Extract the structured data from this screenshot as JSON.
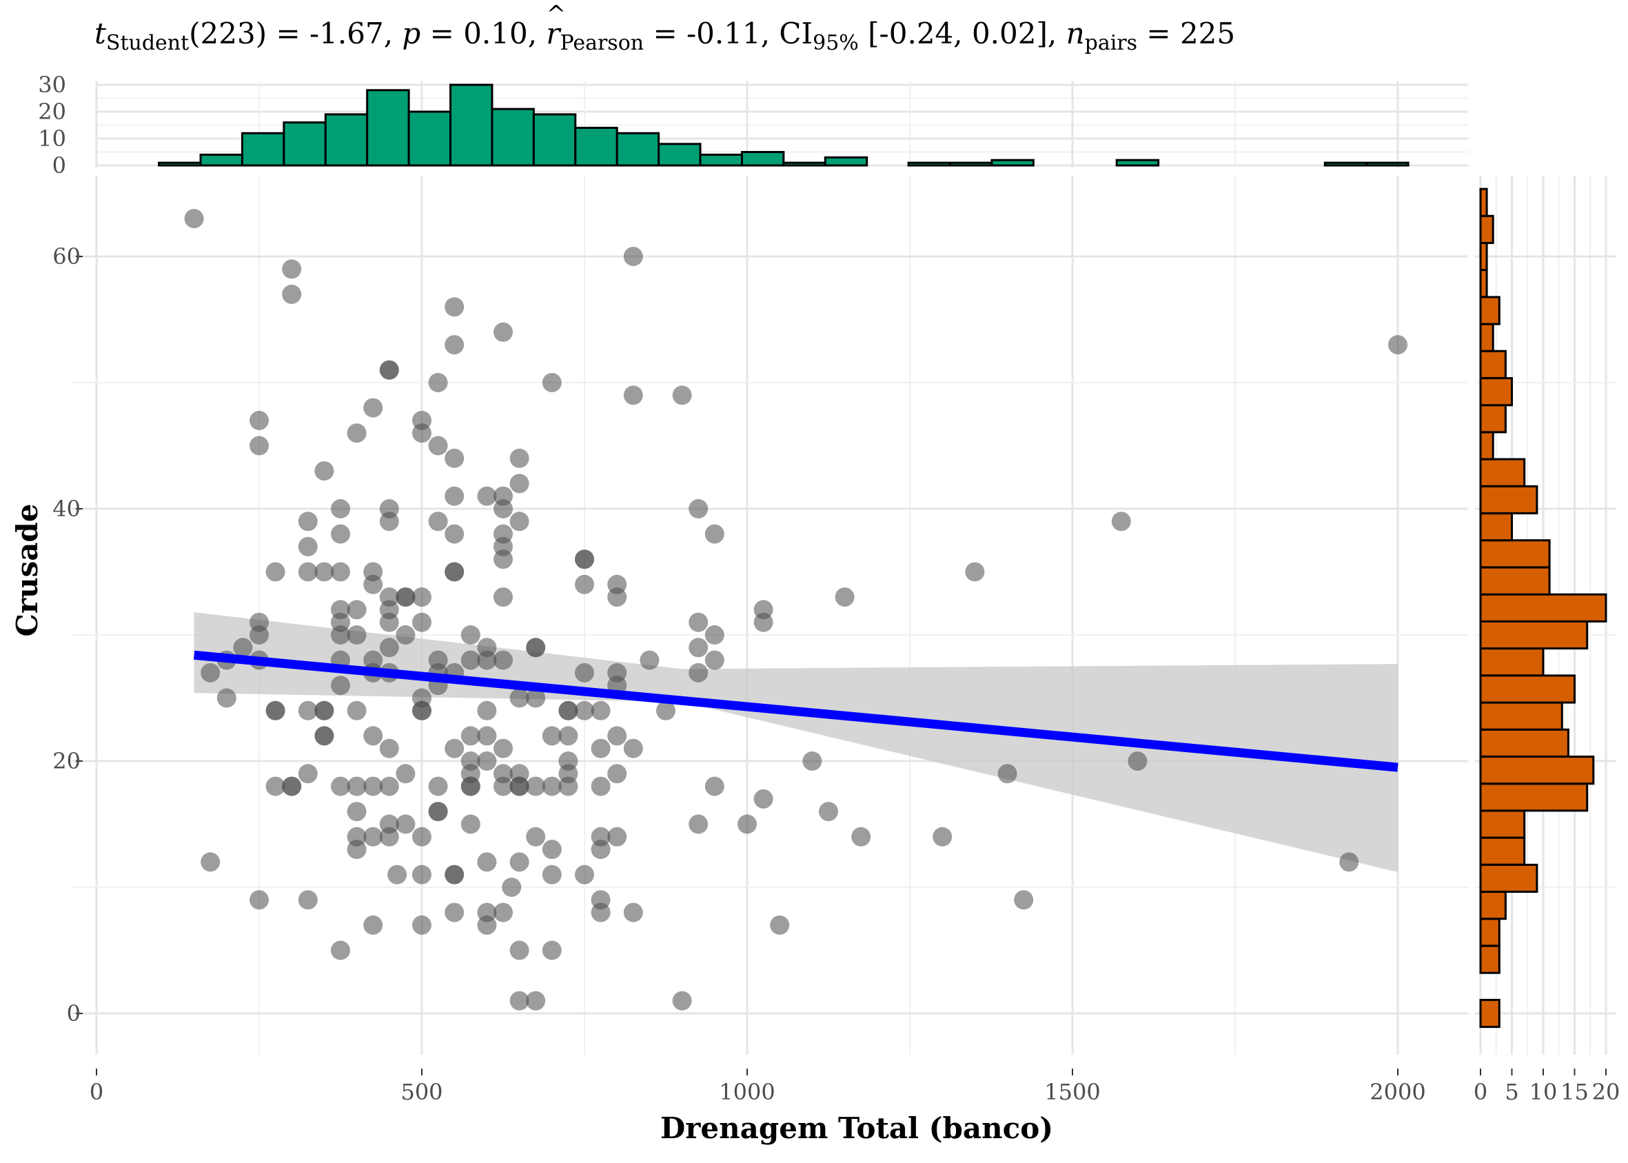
{
  "chart_data": {
    "type": "scatter",
    "title": {
      "t_label": "t",
      "t_sub": "Student",
      "t_value": "(223) = -1.67, ",
      "p_label": "p",
      "p_value": " = 0.10, ",
      "r_label": "r",
      "r_sub": "Pearson",
      "r_value": " = -0.11, CI",
      "ci_sub": "95%",
      "ci_value": " [-0.24, 0.02], ",
      "n_label": "n",
      "n_sub": "pairs",
      "n_value": " = 225"
    },
    "xlabel": "Drenagem Total (banco)",
    "ylabel": "Crusade",
    "xlim": [
      0,
      2100
    ],
    "ylim": [
      -3.5,
      68
    ],
    "x_ticks": [
      0,
      500,
      1000,
      1500,
      2000
    ],
    "x_tick_labels": [
      "0",
      "500",
      "1000",
      "1500",
      "2000"
    ],
    "y_ticks": [
      0,
      20,
      40,
      60
    ],
    "y_tick_labels": [
      "0",
      "20",
      "40",
      "60"
    ],
    "grid": true,
    "colors": {
      "points": "#4d4d4d",
      "fit_line": "#0000ff",
      "ci_band": "#c8c8c8",
      "top_hist": "#009e73",
      "side_hist": "#d55e00"
    },
    "points": [
      [
        150,
        63
      ],
      [
        175,
        12
      ],
      [
        175,
        27
      ],
      [
        200,
        28
      ],
      [
        200,
        25
      ],
      [
        225,
        29
      ],
      [
        250,
        47
      ],
      [
        250,
        45
      ],
      [
        250,
        31
      ],
      [
        250,
        30
      ],
      [
        250,
        28
      ],
      [
        250,
        9
      ],
      [
        275,
        35
      ],
      [
        275,
        24
      ],
      [
        275,
        24
      ],
      [
        275,
        18
      ],
      [
        300,
        59
      ],
      [
        300,
        57
      ],
      [
        300,
        18
      ],
      [
        300,
        18
      ],
      [
        325,
        39
      ],
      [
        325,
        37
      ],
      [
        325,
        35
      ],
      [
        325,
        24
      ],
      [
        325,
        19
      ],
      [
        325,
        9
      ],
      [
        350,
        43
      ],
      [
        350,
        35
      ],
      [
        350,
        24
      ],
      [
        350,
        24
      ],
      [
        350,
        22
      ],
      [
        350,
        22
      ],
      [
        375,
        40
      ],
      [
        375,
        38
      ],
      [
        375,
        35
      ],
      [
        375,
        32
      ],
      [
        375,
        31
      ],
      [
        375,
        30
      ],
      [
        375,
        28
      ],
      [
        375,
        26
      ],
      [
        375,
        18
      ],
      [
        375,
        5
      ],
      [
        400,
        46
      ],
      [
        400,
        32
      ],
      [
        400,
        30
      ],
      [
        400,
        24
      ],
      [
        400,
        18
      ],
      [
        400,
        16
      ],
      [
        400,
        14
      ],
      [
        400,
        13
      ],
      [
        425,
        48
      ],
      [
        425,
        35
      ],
      [
        425,
        34
      ],
      [
        425,
        28
      ],
      [
        425,
        27
      ],
      [
        425,
        22
      ],
      [
        425,
        18
      ],
      [
        425,
        14
      ],
      [
        425,
        7
      ],
      [
        450,
        51
      ],
      [
        450,
        51
      ],
      [
        450,
        40
      ],
      [
        450,
        39
      ],
      [
        450,
        33
      ],
      [
        450,
        32
      ],
      [
        450,
        31
      ],
      [
        450,
        29
      ],
      [
        450,
        27
      ],
      [
        450,
        21
      ],
      [
        450,
        18
      ],
      [
        450,
        15
      ],
      [
        450,
        14
      ],
      [
        462,
        11
      ],
      [
        475,
        33
      ],
      [
        475,
        33
      ],
      [
        475,
        30
      ],
      [
        475,
        19
      ],
      [
        475,
        15
      ],
      [
        500,
        47
      ],
      [
        500,
        46
      ],
      [
        500,
        33
      ],
      [
        500,
        31
      ],
      [
        500,
        25
      ],
      [
        500,
        24
      ],
      [
        500,
        24
      ],
      [
        500,
        14
      ],
      [
        500,
        11
      ],
      [
        500,
        7
      ],
      [
        525,
        50
      ],
      [
        525,
        45
      ],
      [
        525,
        39
      ],
      [
        525,
        28
      ],
      [
        525,
        27
      ],
      [
        525,
        26
      ],
      [
        525,
        18
      ],
      [
        525,
        16
      ],
      [
        525,
        16
      ],
      [
        550,
        56
      ],
      [
        550,
        53
      ],
      [
        550,
        44
      ],
      [
        550,
        41
      ],
      [
        550,
        38
      ],
      [
        550,
        35
      ],
      [
        550,
        35
      ],
      [
        550,
        27
      ],
      [
        550,
        21
      ],
      [
        550,
        11
      ],
      [
        550,
        11
      ],
      [
        550,
        8
      ],
      [
        575,
        30
      ],
      [
        575,
        28
      ],
      [
        575,
        22
      ],
      [
        575,
        20
      ],
      [
        575,
        19
      ],
      [
        575,
        18
      ],
      [
        575,
        18
      ],
      [
        575,
        15
      ],
      [
        600,
        41
      ],
      [
        600,
        29
      ],
      [
        600,
        28
      ],
      [
        600,
        24
      ],
      [
        600,
        22
      ],
      [
        600,
        20
      ],
      [
        600,
        12
      ],
      [
        600,
        8
      ],
      [
        600,
        7
      ],
      [
        625,
        54
      ],
      [
        625,
        41
      ],
      [
        625,
        40
      ],
      [
        625,
        38
      ],
      [
        625,
        37
      ],
      [
        625,
        36
      ],
      [
        625,
        33
      ],
      [
        625,
        28
      ],
      [
        625,
        21
      ],
      [
        625,
        19
      ],
      [
        625,
        18
      ],
      [
        625,
        8
      ],
      [
        638,
        10
      ],
      [
        650,
        44
      ],
      [
        650,
        42
      ],
      [
        650,
        39
      ],
      [
        650,
        25
      ],
      [
        650,
        19
      ],
      [
        650,
        18
      ],
      [
        650,
        18
      ],
      [
        650,
        12
      ],
      [
        650,
        5
      ],
      [
        650,
        1
      ],
      [
        675,
        29
      ],
      [
        675,
        29
      ],
      [
        675,
        25
      ],
      [
        675,
        18
      ],
      [
        675,
        14
      ],
      [
        675,
        1
      ],
      [
        700,
        50
      ],
      [
        700,
        22
      ],
      [
        700,
        18
      ],
      [
        700,
        13
      ],
      [
        700,
        11
      ],
      [
        700,
        5
      ],
      [
        725,
        24
      ],
      [
        725,
        24
      ],
      [
        725,
        22
      ],
      [
        725,
        20
      ],
      [
        725,
        19
      ],
      [
        725,
        18
      ],
      [
        750,
        36
      ],
      [
        750,
        36
      ],
      [
        750,
        34
      ],
      [
        750,
        27
      ],
      [
        750,
        24
      ],
      [
        750,
        11
      ],
      [
        775,
        24
      ],
      [
        775,
        21
      ],
      [
        775,
        18
      ],
      [
        775,
        14
      ],
      [
        775,
        13
      ],
      [
        775,
        9
      ],
      [
        775,
        8
      ],
      [
        800,
        34
      ],
      [
        800,
        33
      ],
      [
        800,
        27
      ],
      [
        800,
        26
      ],
      [
        800,
        22
      ],
      [
        800,
        19
      ],
      [
        800,
        14
      ],
      [
        825,
        60
      ],
      [
        825,
        49
      ],
      [
        825,
        21
      ],
      [
        825,
        8
      ],
      [
        850,
        28
      ],
      [
        875,
        24
      ],
      [
        900,
        49
      ],
      [
        900,
        1
      ],
      [
        925,
        40
      ],
      [
        925,
        31
      ],
      [
        925,
        29
      ],
      [
        925,
        27
      ],
      [
        925,
        15
      ],
      [
        950,
        38
      ],
      [
        950,
        30
      ],
      [
        950,
        28
      ],
      [
        950,
        18
      ],
      [
        1000,
        15
      ],
      [
        1025,
        32
      ],
      [
        1025,
        31
      ],
      [
        1025,
        17
      ],
      [
        1050,
        7
      ],
      [
        1100,
        20
      ],
      [
        1125,
        16
      ],
      [
        1150,
        33
      ],
      [
        1175,
        14
      ],
      [
        1300,
        14
      ],
      [
        1350,
        35
      ],
      [
        1400,
        19
      ],
      [
        1425,
        9
      ],
      [
        1575,
        39
      ],
      [
        1600,
        20
      ],
      [
        1925,
        12
      ],
      [
        2000,
        53
      ]
    ],
    "fit_line": {
      "x": [
        150,
        2000
      ],
      "y": [
        28.4,
        19.5
      ]
    },
    "ci_band": {
      "x": [
        150,
        900,
        2000
      ],
      "upper": [
        31.8,
        27.3,
        27.7
      ],
      "lower": [
        25.4,
        24.7,
        11.2
      ]
    },
    "top_histogram": {
      "ylim": [
        0,
        32
      ],
      "y_ticks": [
        0,
        10,
        20,
        30
      ],
      "y_tick_labels": [
        "0",
        "10",
        "20",
        "30"
      ],
      "bin_width": 64,
      "bin_starts": [
        96,
        160,
        224,
        288,
        352,
        416,
        480,
        544,
        608,
        672,
        736,
        800,
        864,
        928,
        992,
        1056,
        1120,
        1184,
        1248,
        1312,
        1376,
        1440,
        1504,
        1568,
        1632,
        1696,
        1760,
        1824,
        1888,
        1952
      ],
      "counts": [
        1,
        4,
        12,
        16,
        19,
        28,
        20,
        30,
        21,
        19,
        14,
        12,
        8,
        4,
        5,
        1,
        3,
        0,
        1,
        1,
        2,
        0,
        0,
        2,
        0,
        0,
        0,
        0,
        1,
        1
      ]
    },
    "side_histogram": {
      "xlim": [
        0,
        21
      ],
      "x_ticks": [
        0,
        5,
        10,
        15,
        20
      ],
      "x_tick_labels": [
        "0",
        "5",
        "10",
        "15",
        "20"
      ],
      "bin_width": 2.14,
      "bin_starts": [
        -1.07,
        1.07,
        3.21,
        5.36,
        7.5,
        9.64,
        11.79,
        13.93,
        16.07,
        18.21,
        20.36,
        22.5,
        24.64,
        26.79,
        28.93,
        31.07,
        33.21,
        35.36,
        37.5,
        39.64,
        41.79,
        43.93,
        46.07,
        48.21,
        50.36,
        52.5,
        54.64,
        56.79,
        58.93,
        61.07,
        63.21
      ],
      "counts": [
        3,
        0,
        3,
        3,
        4,
        9,
        7,
        7,
        17,
        18,
        14,
        13,
        15,
        10,
        17,
        20,
        11,
        11,
        5,
        9,
        7,
        2,
        4,
        5,
        4,
        2,
        3,
        1,
        1,
        2,
        1
      ]
    }
  }
}
